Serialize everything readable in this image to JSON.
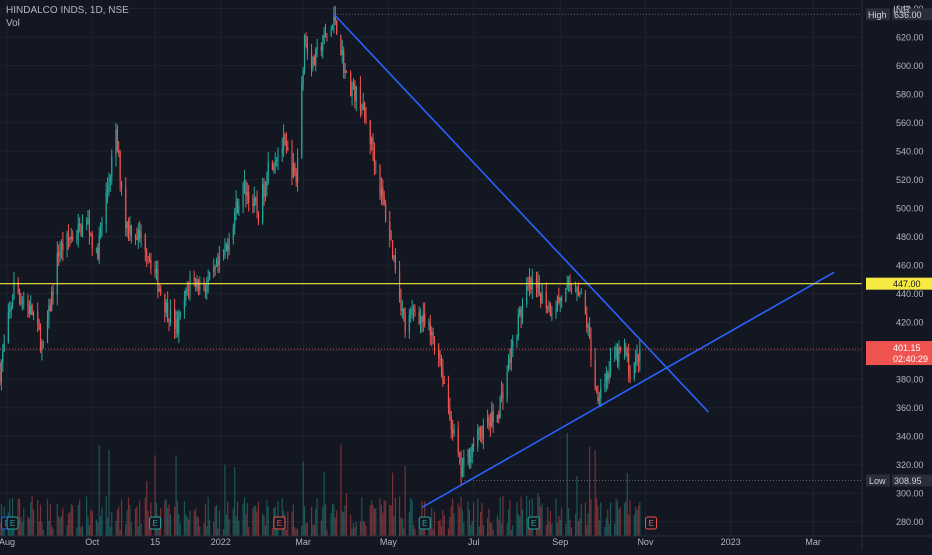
{
  "header": {
    "symbol_line": "HINDALCO INDS, 1D, NSE",
    "volume_label": "Vol"
  },
  "colors": {
    "background": "#131722",
    "up": "#26a69a",
    "down": "#ef5350",
    "trendline": "#2962ff",
    "resistance": "#f5e942",
    "axis_text": "#b2b5be",
    "grid": "#1e222d"
  },
  "chart_data": {
    "type": "candlestick",
    "currency": "INR",
    "ylim": [
      270,
      646
    ],
    "y_ticks": [
      280,
      300,
      320,
      340,
      360,
      380,
      400,
      420,
      440,
      460,
      480,
      500,
      520,
      540,
      560,
      580,
      600,
      620,
      640
    ],
    "y_tick_labels": [
      "280.00",
      "300.00",
      "320.00",
      "340.00",
      "360.00",
      "380.00",
      "400.00",
      "420.00",
      "440.00",
      "460.00",
      "480.00",
      "500.00",
      "520.00",
      "540.00",
      "560.00",
      "580.00",
      "600.00",
      "620.00",
      "640.00"
    ],
    "x_ticks": [
      {
        "label": "Aug",
        "date": "2021-08-01"
      },
      {
        "label": "Oct",
        "date": "2021-10-01"
      },
      {
        "label": "15",
        "date": "2021-11-15"
      },
      {
        "label": "2022",
        "date": "2022-01-01"
      },
      {
        "label": "Mar",
        "date": "2022-03-01"
      },
      {
        "label": "May",
        "date": "2022-05-01"
      },
      {
        "label": "Jul",
        "date": "2022-07-01"
      },
      {
        "label": "Sep",
        "date": "2022-09-01"
      },
      {
        "label": "Nov",
        "date": "2022-11-01"
      },
      {
        "label": "2023",
        "date": "2023-01-01"
      },
      {
        "label": "Mar",
        "date": "2023-03-01"
      }
    ],
    "xlim": [
      "2021-07-27",
      "2023-04-05"
    ],
    "price_path": [
      [
        "2021-07-27",
        385
      ],
      [
        "2021-08-06",
        445
      ],
      [
        "2021-08-20",
        425
      ],
      [
        "2021-08-27",
        400
      ],
      [
        "2021-09-07",
        470
      ],
      [
        "2021-09-16",
        480
      ],
      [
        "2021-09-28",
        490
      ],
      [
        "2021-10-04",
        465
      ],
      [
        "2021-10-13",
        520
      ],
      [
        "2021-10-18",
        550
      ],
      [
        "2021-10-25",
        490
      ],
      [
        "2021-11-08",
        475
      ],
      [
        "2021-11-23",
        430
      ],
      [
        "2021-12-01",
        415
      ],
      [
        "2021-12-10",
        450
      ],
      [
        "2021-12-22",
        445
      ],
      [
        "2022-01-03",
        465
      ],
      [
        "2022-01-12",
        500
      ],
      [
        "2022-01-18",
        515
      ],
      [
        "2022-01-28",
        495
      ],
      [
        "2022-02-04",
        530
      ],
      [
        "2022-02-15",
        545
      ],
      [
        "2022-02-24",
        520
      ],
      [
        "2022-03-02",
        620
      ],
      [
        "2022-03-08",
        600
      ],
      [
        "2022-03-14",
        615
      ],
      [
        "2022-03-21",
        625
      ],
      [
        "2022-03-24",
        633
      ],
      [
        "2022-04-01",
        590
      ],
      [
        "2022-04-11",
        575
      ],
      [
        "2022-04-19",
        545
      ],
      [
        "2022-04-28",
        500
      ],
      [
        "2022-05-06",
        460
      ],
      [
        "2022-05-13",
        415
      ],
      [
        "2022-05-20",
        430
      ],
      [
        "2022-05-27",
        418
      ],
      [
        "2022-06-06",
        400
      ],
      [
        "2022-06-13",
        360
      ],
      [
        "2022-06-22",
        315
      ],
      [
        "2022-07-01",
        335
      ],
      [
        "2022-07-08",
        345
      ],
      [
        "2022-07-18",
        355
      ],
      [
        "2022-07-27",
        395
      ],
      [
        "2022-08-03",
        425
      ],
      [
        "2022-08-10",
        445
      ],
      [
        "2022-08-18",
        440
      ],
      [
        "2022-08-25",
        430
      ],
      [
        "2022-09-05",
        440
      ],
      [
        "2022-09-13",
        448
      ],
      [
        "2022-09-20",
        420
      ],
      [
        "2022-09-27",
        370
      ],
      [
        "2022-10-03",
        380
      ],
      [
        "2022-10-10",
        395
      ],
      [
        "2022-10-17",
        400
      ],
      [
        "2022-10-21",
        385
      ],
      [
        "2022-10-26",
        394
      ],
      [
        "2022-10-28",
        401.15
      ]
    ],
    "high": {
      "label": "High",
      "value": 636.0,
      "text": "636.00",
      "date": "2022-03-23"
    },
    "low": {
      "label": "Low",
      "value": 308.95,
      "text": "308.95",
      "date": "2022-06-22"
    },
    "current": {
      "value": 401.15,
      "text": "401.15",
      "countdown": "02:40:29"
    },
    "resistance": {
      "value": 447.0,
      "text": "447.00"
    },
    "trendlines": [
      {
        "name": "descending",
        "from": [
          "2022-03-23",
          636
        ],
        "to": [
          "2022-12-16",
          357
        ]
      },
      {
        "name": "ascending",
        "from": [
          "2022-05-25",
          290
        ],
        "to": [
          "2023-03-16",
          455
        ]
      }
    ],
    "event_markers": [
      {
        "label": "E",
        "date": "2021-08-01",
        "color": "#2962ff"
      },
      {
        "label": "E",
        "date": "2021-08-05",
        "color": "#26a69a"
      },
      {
        "label": "E",
        "date": "2021-11-15",
        "color": "#26a69a"
      },
      {
        "label": "E",
        "date": "2022-02-12",
        "color": "#ef5350"
      },
      {
        "label": "E",
        "date": "2022-05-27",
        "color": "#26a69a"
      },
      {
        "label": "E",
        "date": "2022-08-13",
        "color": "#26a69a"
      },
      {
        "label": "E",
        "date": "2022-11-05",
        "color": "#ef5350"
      }
    ]
  }
}
